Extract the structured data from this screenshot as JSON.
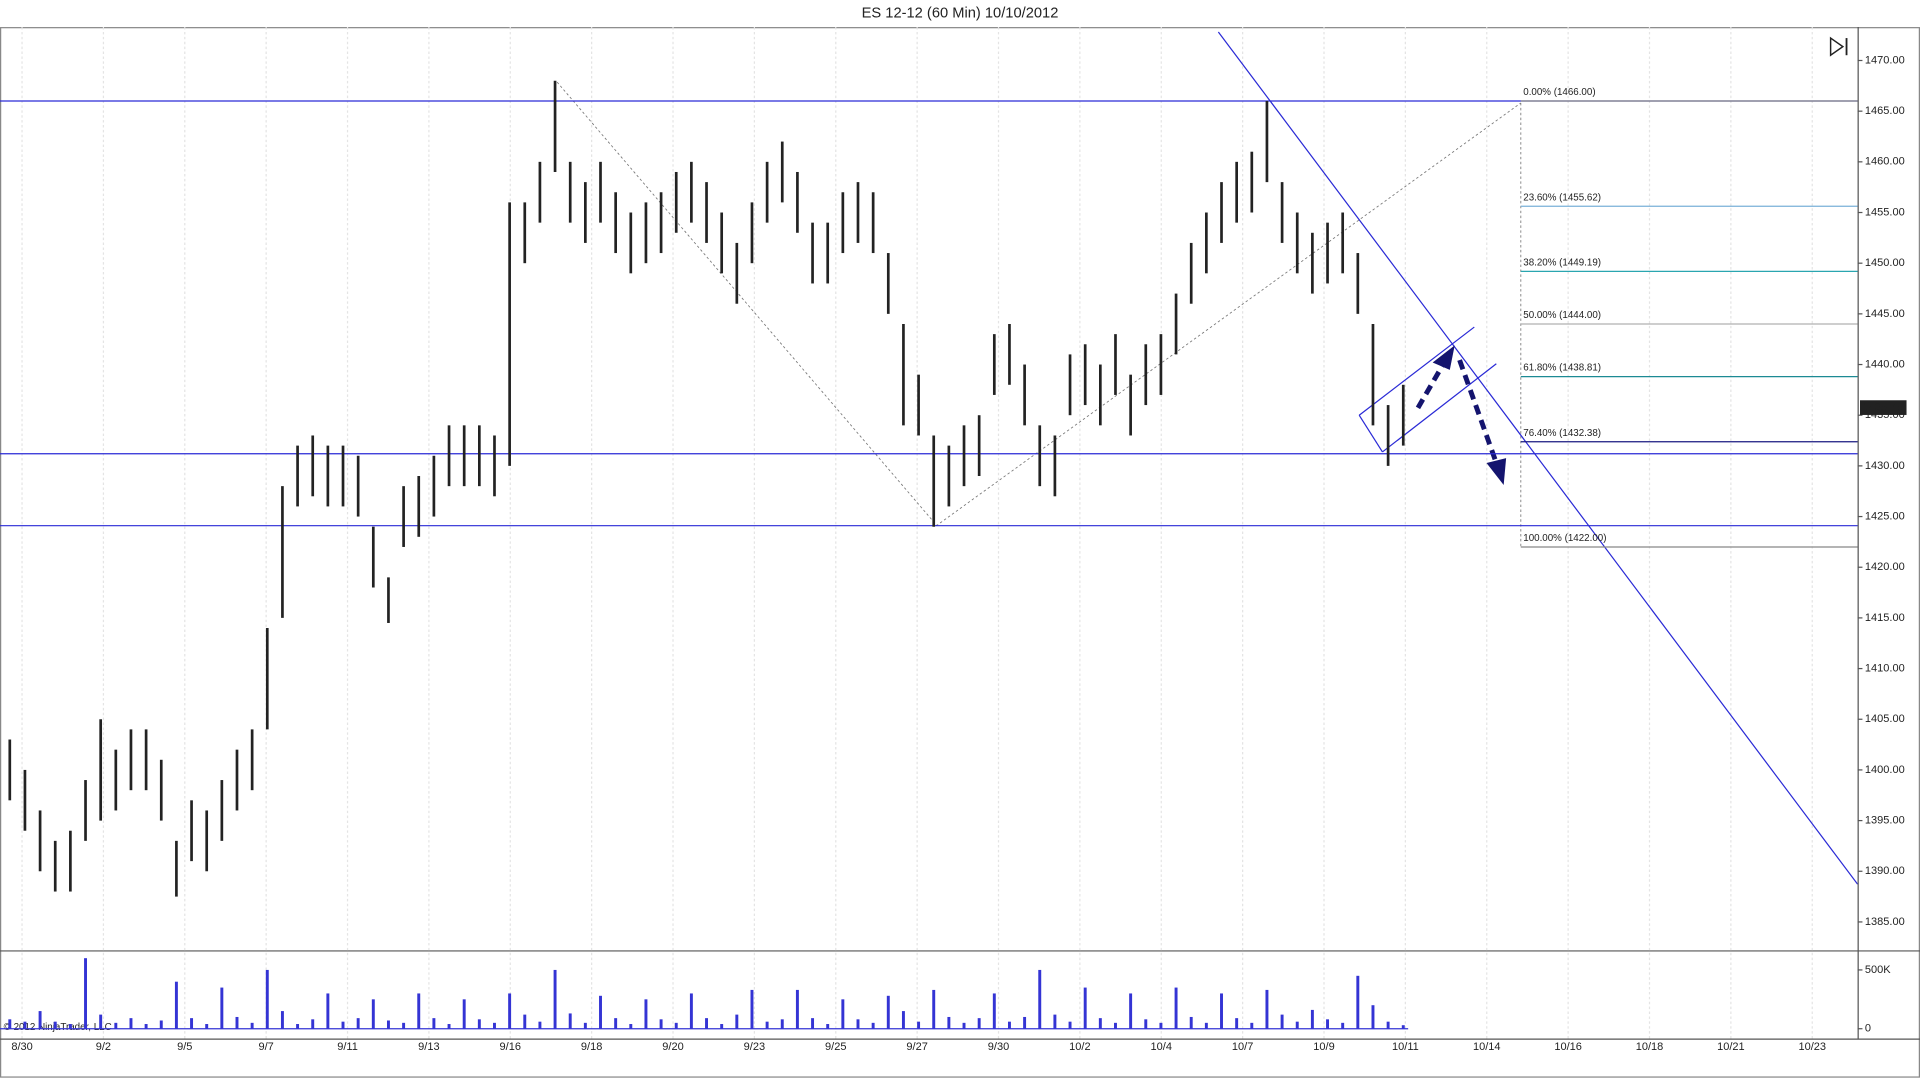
{
  "chart_data": [
    {
      "type": "ohlc",
      "title": "ES 12-12 (60 Min)  10/10/2012",
      "x_labels": [
        "8/30",
        "9/2",
        "9/5",
        "9/7",
        "9/11",
        "9/13",
        "9/16",
        "9/18",
        "9/20",
        "9/23",
        "9/25",
        "9/27",
        "9/30",
        "10/2",
        "10/4",
        "10/7",
        "10/9",
        "10/11",
        "10/14",
        "10/16",
        "10/18",
        "10/21",
        "10/23"
      ],
      "high": [
        1403,
        1400,
        1396,
        1393,
        1394,
        1399,
        1405,
        1402,
        1404,
        1404,
        1401,
        1393,
        1397,
        1396,
        1399,
        1402,
        1404,
        1414,
        1428,
        1432,
        1433,
        1432,
        1432,
        1431,
        1424,
        1419,
        1428,
        1429,
        1431,
        1434,
        1434,
        1434,
        1433,
        1456,
        1456,
        1460,
        1468,
        1460,
        1458,
        1460,
        1457,
        1455,
        1456,
        1457,
        1459,
        1460,
        1458,
        1455,
        1452,
        1456,
        1460,
        1462,
        1459,
        1454,
        1454,
        1457,
        1458,
        1457,
        1451,
        1444,
        1439,
        1433,
        1432,
        1434,
        1435,
        1443,
        1444,
        1440,
        1434,
        1433,
        1441,
        1442,
        1440,
        1443,
        1439,
        1442,
        1443,
        1447,
        1452,
        1455,
        1458,
        1460,
        1461,
        1466,
        1458,
        1455,
        1453,
        1454,
        1455,
        1451,
        1444,
        1436,
        1438
      ],
      "low": [
        1397,
        1394,
        1390,
        1388,
        1388,
        1393,
        1395,
        1396,
        1398,
        1398,
        1395,
        1387.5,
        1391,
        1390,
        1393,
        1396,
        1398,
        1404,
        1415,
        1426,
        1427,
        1426,
        1426,
        1425,
        1418,
        1414.5,
        1422,
        1423,
        1425,
        1428,
        1428,
        1428,
        1427,
        1430,
        1450,
        1454,
        1459,
        1454,
        1452,
        1454,
        1451,
        1449,
        1450,
        1451,
        1453,
        1454,
        1452,
        1449,
        1446,
        1450,
        1454,
        1456,
        1453,
        1448,
        1448,
        1451,
        1452,
        1451,
        1445,
        1434,
        1433,
        1424,
        1426,
        1428,
        1429,
        1437,
        1438,
        1434,
        1428,
        1427,
        1435,
        1436,
        1434,
        1437,
        1433,
        1436,
        1437,
        1441,
        1446,
        1449,
        1452,
        1454,
        1455,
        1458,
        1452,
        1449,
        1447,
        1448,
        1449,
        1445,
        1434,
        1430,
        1432
      ],
      "color": "#222222",
      "ylim": [
        1382.2,
        1473.3
      ],
      "yticks": [
        {
          "value": 1470,
          "label": "1470.00"
        },
        {
          "value": 1465,
          "label": "1465.00"
        },
        {
          "value": 1460,
          "label": "1460.00"
        },
        {
          "value": 1455,
          "label": "1455.00"
        },
        {
          "value": 1450,
          "label": "1450.00"
        },
        {
          "value": 1445,
          "label": "1445.00"
        },
        {
          "value": 1440,
          "label": "1440.00"
        },
        {
          "value": 1435,
          "label": "1435.00"
        },
        {
          "value": 1430,
          "label": "1430.00"
        },
        {
          "value": 1425,
          "label": "1425.00"
        },
        {
          "value": 1420,
          "label": "1420.00"
        },
        {
          "value": 1415,
          "label": "1415.00"
        },
        {
          "value": 1410,
          "label": "1410.00"
        },
        {
          "value": 1405,
          "label": "1405.00"
        },
        {
          "value": 1400,
          "label": "1400.00"
        },
        {
          "value": 1395,
          "label": "1395.00"
        },
        {
          "value": 1390,
          "label": "1390.00"
        },
        {
          "value": 1385,
          "label": "1385.00"
        }
      ],
      "last_price": {
        "value": 1435.75,
        "label": "1435.75"
      },
      "horizontal_lines": [
        1466,
        1431.2,
        1424.1
      ],
      "line_color": "#2a2ad6",
      "fibonacci": [
        {
          "value": 1466,
          "label": "0.00% (1466.00)",
          "color": "#888888"
        },
        {
          "value": 1455.62,
          "label": "23.60% (1455.62)",
          "color": "#7ab0d8"
        },
        {
          "value": 1449.19,
          "label": "38.20% (1449.19)",
          "color": "#2aa6b0"
        },
        {
          "value": 1444,
          "label": "50.00% (1444.00)",
          "color": "#b0b0b0"
        },
        {
          "value": 1438.81,
          "label": "61.80% (1438.81)",
          "color": "#1c8a94"
        },
        {
          "value": 1432.38,
          "label": "76.40% (1432.38)",
          "color": "#1a1a80"
        },
        {
          "value": 1422,
          "label": "100.00% (1422.00)",
          "color": "#888888"
        }
      ]
    },
    {
      "type": "bar",
      "values": [
        80000,
        60000,
        150000,
        60000,
        40000,
        600000,
        120000,
        50000,
        90000,
        40000,
        70000,
        400000,
        90000,
        40000,
        350000,
        100000,
        50000,
        500000,
        150000,
        40000,
        80000,
        300000,
        60000,
        90000,
        250000,
        70000,
        50000,
        300000,
        90000,
        40000,
        250000,
        80000,
        50000,
        300000,
        120000,
        60000,
        500000,
        130000,
        50000,
        280000,
        90000,
        40000,
        250000,
        80000,
        50000,
        300000,
        90000,
        40000,
        120000,
        330000,
        60000,
        80000,
        330000,
        90000,
        40000,
        250000,
        80000,
        50000,
        280000,
        150000,
        60000,
        330000,
        100000,
        50000,
        90000,
        300000,
        60000,
        100000,
        500000,
        120000,
        60000,
        350000,
        90000,
        50000,
        300000,
        80000,
        50000,
        350000,
        100000,
        50000,
        300000,
        90000,
        50000,
        330000,
        120000,
        60000,
        160000,
        80000,
        50000,
        450000,
        200000,
        60000,
        30000
      ],
      "color": "#3434d4",
      "ylim": [
        -83000,
        646000
      ],
      "yticks": [
        {
          "value": 500000,
          "label": "500K"
        },
        0
      ]
    }
  ],
  "footer": "© 2012 NinjaTrader, LLC"
}
